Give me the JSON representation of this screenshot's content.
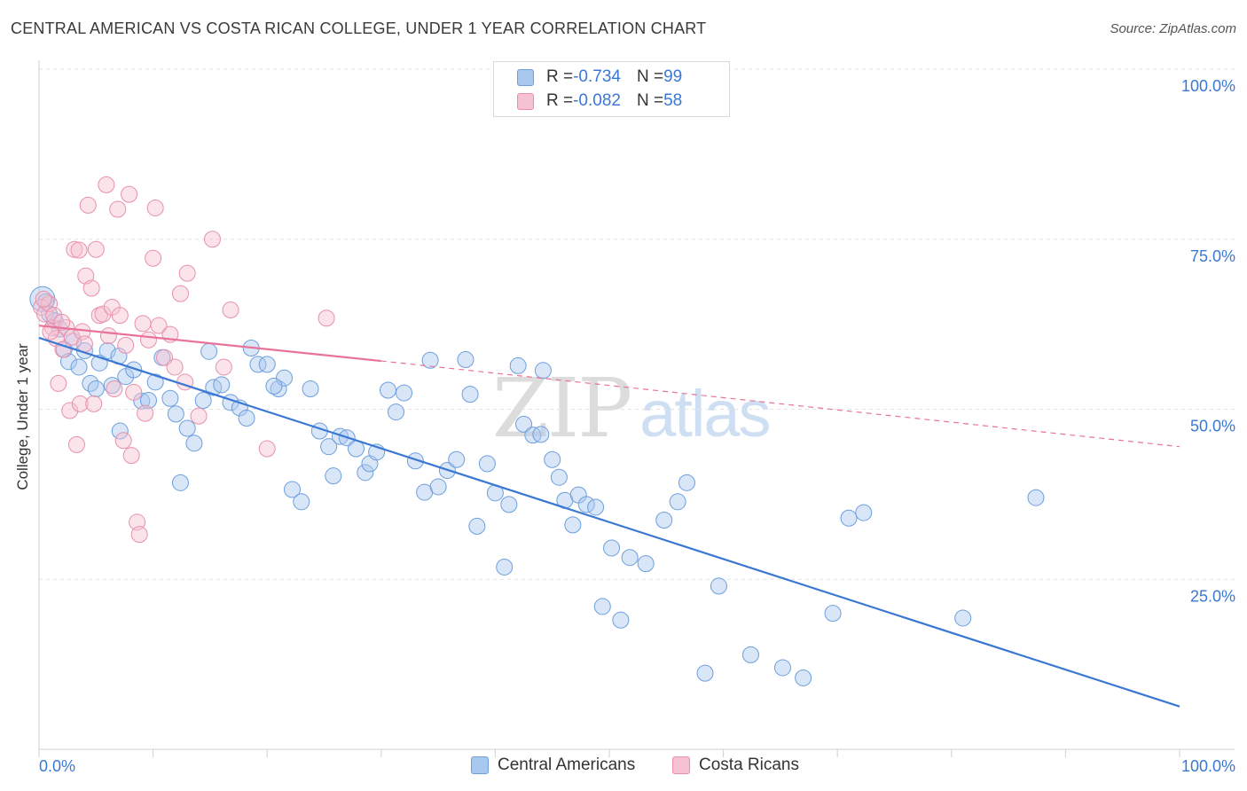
{
  "title": "CENTRAL AMERICAN VS COSTA RICAN COLLEGE, UNDER 1 YEAR CORRELATION CHART",
  "source": "Source: ZipAtlas.com",
  "watermark": {
    "zip": "ZIP",
    "atlas": "atlas"
  },
  "legend": {
    "rows": [
      {
        "r_label": "R = ",
        "r_value": "-0.734",
        "n_label": "N = ",
        "n_value": "99",
        "color": "#a9c8ef",
        "border": "#6d9fdc"
      },
      {
        "r_label": "R = ",
        "r_value": "-0.082",
        "n_label": "N = ",
        "n_value": "58",
        "color": "#f6c1d1",
        "border": "#e890ab"
      }
    ]
  },
  "bottom_legend": [
    {
      "label": "Central Americans",
      "color": "#a9c8ef",
      "border": "#6d9fdc"
    },
    {
      "label": "Costa Ricans",
      "color": "#f6c1d1",
      "border": "#e890ab"
    }
  ],
  "chart_data": {
    "type": "scatter",
    "title": "CENTRAL AMERICAN VS COSTA RICAN COLLEGE, UNDER 1 YEAR CORRELATION CHART",
    "xlabel": "",
    "ylabel": "College, Under 1 year",
    "xlim": [
      0,
      100
    ],
    "ylim": [
      0,
      100
    ],
    "x_tick_labels": [
      "0.0%",
      "100.0%"
    ],
    "y_tick_labels": [
      "25.0%",
      "50.0%",
      "75.0%",
      "100.0%"
    ],
    "y_ticks": [
      25,
      50,
      75,
      100
    ],
    "grid": "horizontal dashed",
    "legend_position": "top-center",
    "colors": {
      "central": "#3b78d4",
      "costa": "#e8729a"
    },
    "series": [
      {
        "name": "Central Americans",
        "r": -0.734,
        "n": 99,
        "trend": {
          "x": [
            0,
            100
          ],
          "y": [
            60.5,
            6.3
          ],
          "style": "solid"
        },
        "points": [
          [
            0.3,
            66.2
          ],
          [
            0.6,
            65.8
          ],
          [
            0.9,
            64.0
          ],
          [
            1.4,
            63.0
          ],
          [
            1.8,
            61.8
          ],
          [
            2.2,
            58.8
          ],
          [
            2.6,
            57.0
          ],
          [
            3.0,
            60.0
          ],
          [
            3.5,
            56.2
          ],
          [
            4.0,
            58.6
          ],
          [
            4.5,
            53.8
          ],
          [
            5.0,
            53.0
          ],
          [
            5.3,
            56.8
          ],
          [
            6.0,
            58.6
          ],
          [
            6.4,
            53.5
          ],
          [
            7.0,
            57.8
          ],
          [
            7.6,
            54.8
          ],
          [
            8.3,
            55.8
          ],
          [
            9.0,
            51.2
          ],
          [
            9.6,
            51.3
          ],
          [
            10.2,
            54.0
          ],
          [
            10.8,
            57.6
          ],
          [
            11.5,
            51.6
          ],
          [
            12.0,
            49.3
          ],
          [
            13.0,
            47.2
          ],
          [
            13.6,
            45.0
          ],
          [
            14.4,
            51.3
          ],
          [
            14.9,
            58.5
          ],
          [
            15.3,
            53.2
          ],
          [
            16.0,
            53.6
          ],
          [
            16.8,
            51.0
          ],
          [
            17.6,
            50.2
          ],
          [
            18.2,
            48.7
          ],
          [
            18.6,
            59.0
          ],
          [
            19.2,
            56.6
          ],
          [
            20.0,
            56.6
          ],
          [
            21.0,
            53.0
          ],
          [
            21.5,
            54.6
          ],
          [
            22.2,
            38.2
          ],
          [
            23.0,
            36.4
          ],
          [
            23.8,
            53.0
          ],
          [
            24.6,
            46.8
          ],
          [
            25.4,
            44.5
          ],
          [
            25.8,
            40.2
          ],
          [
            26.4,
            46.0
          ],
          [
            27.0,
            45.8
          ],
          [
            27.8,
            44.2
          ],
          [
            28.6,
            40.7
          ],
          [
            29.0,
            42.0
          ],
          [
            29.6,
            43.7
          ],
          [
            30.6,
            52.8
          ],
          [
            31.3,
            49.6
          ],
          [
            32.0,
            52.4
          ],
          [
            12.4,
            39.2
          ],
          [
            7.1,
            46.8
          ],
          [
            20.6,
            53.4
          ],
          [
            33.0,
            42.4
          ],
          [
            33.8,
            37.8
          ],
          [
            34.3,
            57.2
          ],
          [
            35.0,
            38.6
          ],
          [
            35.8,
            41.0
          ],
          [
            36.6,
            42.6
          ],
          [
            37.4,
            57.3
          ],
          [
            37.8,
            52.2
          ],
          [
            38.4,
            32.8
          ],
          [
            39.3,
            42.0
          ],
          [
            40.0,
            37.7
          ],
          [
            40.8,
            26.8
          ],
          [
            41.2,
            36.0
          ],
          [
            42.5,
            47.8
          ],
          [
            43.3,
            46.2
          ],
          [
            44.0,
            46.3
          ],
          [
            45.0,
            42.6
          ],
          [
            45.6,
            40.0
          ],
          [
            46.1,
            36.6
          ],
          [
            46.8,
            33.0
          ],
          [
            47.3,
            37.4
          ],
          [
            48.0,
            36.0
          ],
          [
            48.8,
            35.6
          ],
          [
            49.4,
            21.0
          ],
          [
            50.2,
            29.6
          ],
          [
            51.0,
            19.0
          ],
          [
            51.8,
            28.2
          ],
          [
            53.2,
            27.3
          ],
          [
            54.8,
            33.7
          ],
          [
            56.0,
            36.4
          ],
          [
            56.8,
            39.2
          ],
          [
            58.4,
            11.2
          ],
          [
            59.6,
            24.0
          ],
          [
            62.4,
            13.9
          ],
          [
            65.2,
            12.0
          ],
          [
            67.0,
            10.5
          ],
          [
            69.6,
            20.0
          ],
          [
            71.0,
            34.0
          ],
          [
            72.3,
            34.8
          ],
          [
            81.0,
            19.3
          ],
          [
            87.4,
            37.0
          ],
          [
            44.2,
            55.7
          ],
          [
            42.0,
            56.4
          ]
        ]
      },
      {
        "name": "Costa Ricans",
        "r": -0.082,
        "n": 58,
        "trend": {
          "x": [
            0,
            30
          ],
          "y": [
            62.3,
            57.1
          ],
          "style": "solid",
          "extended": {
            "x": [
              30,
              100
            ],
            "y": [
              57.1,
              44.5
            ],
            "style": "dashed"
          }
        },
        "points": [
          [
            0.2,
            65.0
          ],
          [
            0.5,
            64.0
          ],
          [
            0.9,
            65.5
          ],
          [
            1.2,
            62.0
          ],
          [
            1.5,
            60.4
          ],
          [
            1.7,
            53.8
          ],
          [
            2.1,
            58.8
          ],
          [
            2.4,
            62.0
          ],
          [
            2.7,
            49.8
          ],
          [
            2.9,
            60.6
          ],
          [
            3.1,
            73.5
          ],
          [
            3.3,
            44.8
          ],
          [
            3.5,
            73.4
          ],
          [
            3.6,
            50.8
          ],
          [
            3.8,
            61.4
          ],
          [
            4.1,
            69.6
          ],
          [
            4.3,
            80.0
          ],
          [
            4.6,
            67.8
          ],
          [
            4.8,
            50.8
          ],
          [
            5.0,
            73.5
          ],
          [
            5.3,
            63.8
          ],
          [
            5.6,
            64.0
          ],
          [
            5.9,
            83.0
          ],
          [
            6.1,
            60.8
          ],
          [
            6.4,
            65.0
          ],
          [
            6.6,
            53.0
          ],
          [
            6.9,
            79.4
          ],
          [
            7.1,
            63.8
          ],
          [
            7.4,
            45.4
          ],
          [
            7.6,
            59.4
          ],
          [
            7.9,
            81.6
          ],
          [
            8.1,
            43.2
          ],
          [
            8.3,
            52.5
          ],
          [
            8.6,
            33.4
          ],
          [
            8.8,
            31.6
          ],
          [
            9.1,
            62.6
          ],
          [
            9.3,
            49.4
          ],
          [
            10.0,
            72.2
          ],
          [
            10.2,
            79.6
          ],
          [
            10.5,
            62.3
          ],
          [
            11.0,
            57.6
          ],
          [
            11.5,
            61.0
          ],
          [
            11.9,
            56.2
          ],
          [
            12.4,
            67.0
          ],
          [
            13.0,
            70.0
          ],
          [
            14.0,
            49.0
          ],
          [
            15.2,
            75.0
          ],
          [
            16.2,
            56.2
          ],
          [
            16.8,
            64.6
          ],
          [
            20.0,
            44.2
          ],
          [
            25.2,
            63.4
          ],
          [
            0.4,
            66.2
          ],
          [
            1.0,
            61.4
          ],
          [
            1.3,
            63.8
          ],
          [
            2.0,
            62.8
          ],
          [
            4.0,
            59.6
          ],
          [
            9.6,
            60.2
          ],
          [
            12.8,
            54.0
          ]
        ]
      }
    ]
  }
}
